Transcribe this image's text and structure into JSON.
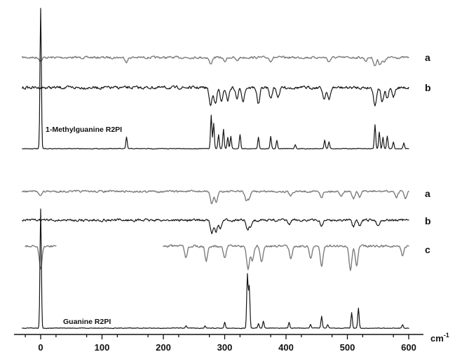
{
  "chart_data": {
    "type": "line",
    "title": "",
    "xlabel": "cm",
    "xlabel_superscript": "-1",
    "xlim": [
      -30,
      625
    ],
    "x_ticks": [
      0,
      100,
      200,
      300,
      400,
      500,
      600
    ],
    "x_tick_labels": [
      "0",
      "100",
      "200",
      "300",
      "400",
      "500",
      "600"
    ],
    "grid": false,
    "y_axis_shown": false,
    "colors": {
      "black_trace": "#151515",
      "gray_trace": "#7d7d7d"
    },
    "panels": [
      {
        "title": "1-Methylguanine R2PI",
        "series": [
          {
            "name": "a",
            "style": "gray",
            "x_range": [
              -30,
              600
            ],
            "dips": [
              [
                0,
                0.4
              ],
              [
                140,
                0.5
              ],
              [
                277,
                0.8
              ],
              [
                300,
                0.5
              ],
              [
                320,
                0.4
              ],
              [
                375,
                0.4
              ],
              [
                470,
                0.5
              ],
              [
                530,
                0.4
              ],
              [
                545,
                1.0
              ],
              [
                553,
                0.8
              ],
              [
                560,
                0.6
              ]
            ]
          },
          {
            "name": "b",
            "style": "black",
            "x_range": [
              -30,
              600
            ],
            "dips": [
              [
                277,
                1.0
              ],
              [
                285,
                0.9
              ],
              [
                295,
                0.8
              ],
              [
                305,
                0.7
              ],
              [
                320,
                0.6
              ],
              [
                330,
                0.7
              ],
              [
                355,
                0.9
              ],
              [
                375,
                0.6
              ],
              [
                387,
                0.5
              ],
              [
                462,
                0.6
              ],
              [
                470,
                0.7
              ],
              [
                545,
                1.0
              ],
              [
                557,
                0.8
              ],
              [
                565,
                0.6
              ],
              [
                575,
                0.5
              ]
            ]
          },
          {
            "name": "1-Methylguanine R2PI",
            "style": "black",
            "x_range": [
              -30,
              600
            ],
            "peaks": [
              [
                0,
                1.0
              ],
              [
                140,
                0.08
              ],
              [
                278,
                0.24
              ],
              [
                282,
                0.18
              ],
              [
                290,
                0.1
              ],
              [
                298,
                0.14
              ],
              [
                305,
                0.08
              ],
              [
                310,
                0.09
              ],
              [
                325,
                0.1
              ],
              [
                355,
                0.08
              ],
              [
                375,
                0.09
              ],
              [
                385,
                0.06
              ],
              [
                415,
                0.03
              ],
              [
                463,
                0.06
              ],
              [
                470,
                0.05
              ],
              [
                545,
                0.17
              ],
              [
                552,
                0.12
              ],
              [
                558,
                0.08
              ],
              [
                565,
                0.09
              ],
              [
                575,
                0.05
              ],
              [
                592,
                0.04
              ]
            ]
          }
        ]
      },
      {
        "title": "Guanine R2PI",
        "series": [
          {
            "name": "a",
            "style": "gray",
            "x_range": [
              -30,
              600
            ],
            "dips": [
              [
                0,
                0.3
              ],
              [
                279,
                0.9
              ],
              [
                286,
                0.8
              ],
              [
                335,
                0.6
              ],
              [
                340,
                0.5
              ],
              [
                407,
                0.3
              ],
              [
                458,
                0.4
              ],
              [
                490,
                0.3
              ],
              [
                510,
                0.5
              ],
              [
                520,
                0.4
              ],
              [
                580,
                0.4
              ],
              [
                595,
                0.5
              ]
            ]
          },
          {
            "name": "b",
            "style": "black",
            "x_range": [
              -30,
              600
            ],
            "dips": [
              [
                279,
                1.0
              ],
              [
                286,
                0.8
              ],
              [
                293,
                0.6
              ],
              [
                337,
                0.7
              ],
              [
                342,
                0.4
              ],
              [
                405,
                0.3
              ],
              [
                458,
                0.4
              ],
              [
                510,
                0.5
              ],
              [
                520,
                0.4
              ],
              [
                550,
                0.4
              ]
            ]
          },
          {
            "name": "c",
            "style": "gray",
            "x_range_segments": [
              [
                -25,
                25
              ],
              [
                200,
                600
              ]
            ],
            "dips": [
              [
                0,
                1.0
              ],
              [
                237,
                0.5
              ],
              [
                270,
                0.6
              ],
              [
                300,
                0.5
              ],
              [
                338,
                1.0
              ],
              [
                345,
                0.6
              ],
              [
                360,
                0.7
              ],
              [
                408,
                0.5
              ],
              [
                440,
                0.5
              ],
              [
                458,
                0.8
              ],
              [
                505,
                1.0
              ],
              [
                515,
                0.8
              ],
              [
                590,
                0.4
              ]
            ]
          },
          {
            "name": "Guanine R2PI",
            "style": "black",
            "x_range": [
              -30,
              600
            ],
            "peaks": [
              [
                0,
                1.0
              ],
              [
                237,
                0.02
              ],
              [
                268,
                0.02
              ],
              [
                300,
                0.05
              ],
              [
                337,
                0.45
              ],
              [
                340,
                0.35
              ],
              [
                355,
                0.04
              ],
              [
                363,
                0.06
              ],
              [
                405,
                0.05
              ],
              [
                440,
                0.03
              ],
              [
                458,
                0.1
              ],
              [
                468,
                0.03
              ],
              [
                507,
                0.13
              ],
              [
                518,
                0.17
              ],
              [
                590,
                0.03
              ],
              [
                605,
                0.03
              ]
            ]
          }
        ]
      }
    ]
  }
}
